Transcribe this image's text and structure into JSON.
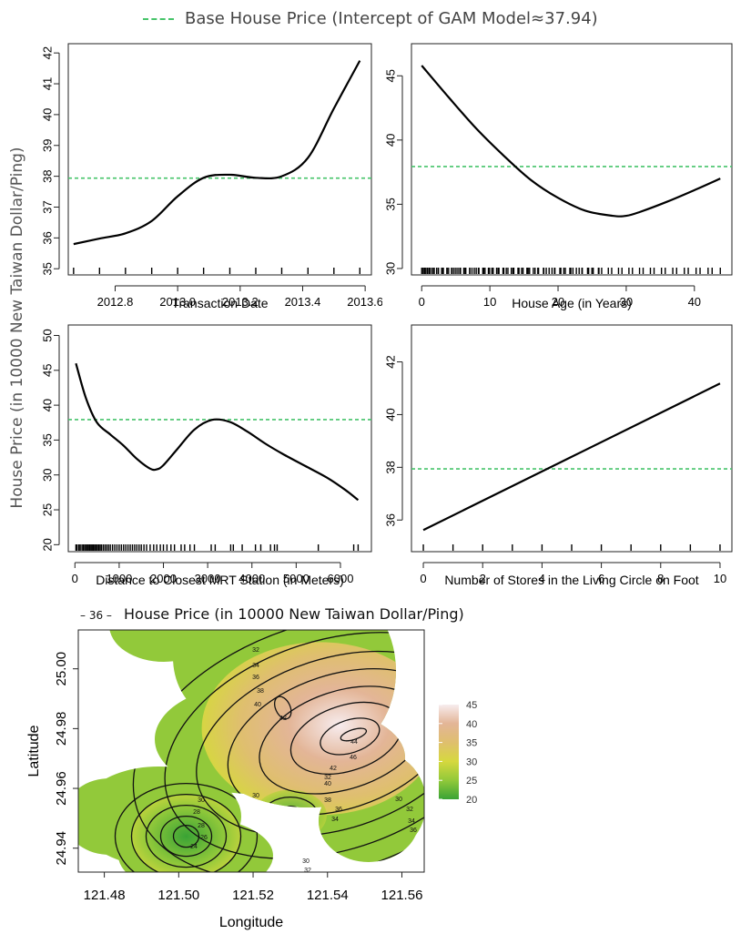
{
  "legend": {
    "base_line_label": "Base House Price (Intercept of GAM Model≈37.94)",
    "base_line_color": "#46c46a",
    "contour_symbol": "– 36 –",
    "contour_label": "House Price (in 10000 New Taiwan Dollar/Ping)"
  },
  "shared_ylabel": "House Price (in 10000 New Taiwan Dollar/Ping)",
  "chart_data": [
    {
      "type": "line",
      "xlabel": "Transaction Date",
      "xlim": [
        2012.65,
        2013.62
      ],
      "ylim": [
        34.8,
        42.3
      ],
      "xticks": [
        2012.8,
        2013.0,
        2013.2,
        2013.4,
        2013.6
      ],
      "xtick_labels": [
        "2012.8",
        "2013.0",
        "2013.2",
        "2013.4",
        "2013.6"
      ],
      "yticks": [
        35,
        36,
        37,
        38,
        39,
        40,
        41,
        42
      ],
      "ytick_labels": [
        "35",
        "36",
        "37",
        "38",
        "39",
        "40",
        "41",
        "42"
      ],
      "baseline": 37.94,
      "x": [
        2012.667,
        2012.75,
        2012.833,
        2012.917,
        2013.0,
        2013.083,
        2013.167,
        2013.25,
        2013.333,
        2013.417,
        2013.5,
        2013.583
      ],
      "y": [
        35.8,
        35.98,
        36.15,
        36.55,
        37.35,
        37.95,
        38.05,
        37.95,
        38.0,
        38.6,
        40.2,
        41.75
      ],
      "rug": [
        2012.667,
        2012.75,
        2012.833,
        2012.917,
        2013.0,
        2013.083,
        2013.167,
        2013.25,
        2013.333,
        2013.417,
        2013.5,
        2013.583
      ]
    },
    {
      "type": "line",
      "xlabel": "House Age (in Years)",
      "xlim": [
        -1.5,
        45.5
      ],
      "ylim": [
        29.5,
        47.5
      ],
      "xticks": [
        0,
        10,
        20,
        30,
        40
      ],
      "xtick_labels": [
        "0",
        "10",
        "20",
        "30",
        "40"
      ],
      "yticks": [
        30,
        35,
        40,
        45
      ],
      "ytick_labels": [
        "30",
        "35",
        "40",
        "45"
      ],
      "baseline": 37.94,
      "x": [
        0,
        4,
        8,
        12,
        16,
        20,
        24,
        28,
        30,
        32,
        36,
        40,
        43.8
      ],
      "y": [
        45.8,
        43.3,
        40.9,
        38.8,
        36.9,
        35.5,
        34.5,
        34.1,
        34.1,
        34.4,
        35.2,
        36.1,
        37.0
      ],
      "rug_range": [
        0,
        43.8
      ]
    },
    {
      "type": "line",
      "xlabel": "Distance to Closest MRT Station (in Meters)",
      "xlim": [
        -150,
        6700
      ],
      "ylim": [
        19,
        51.5
      ],
      "xticks": [
        0,
        1000,
        2000,
        3000,
        4000,
        5000,
        6000
      ],
      "xtick_labels": [
        "0",
        "1000",
        "2000",
        "3000",
        "4000",
        "5000",
        "6000"
      ],
      "yticks": [
        20,
        25,
        30,
        35,
        40,
        45,
        50
      ],
      "ytick_labels": [
        "20",
        "25",
        "30",
        "35",
        "40",
        "45",
        "50"
      ],
      "baseline": 37.94,
      "x": [
        23,
        250,
        500,
        800,
        1100,
        1400,
        1700,
        1850,
        2000,
        2300,
        2700,
        3100,
        3500,
        3900,
        4300,
        4700,
        5200,
        5700,
        6100,
        6400
      ],
      "y": [
        46.0,
        41.0,
        37.5,
        35.8,
        34.2,
        32.3,
        30.9,
        30.8,
        31.4,
        33.6,
        36.5,
        37.9,
        37.6,
        36.2,
        34.5,
        33.0,
        31.3,
        29.6,
        27.9,
        26.4
      ],
      "rug": [
        23,
        50,
        90,
        120,
        160,
        190,
        220,
        250,
        280,
        300,
        330,
        360,
        390,
        420,
        450,
        480,
        510,
        540,
        570,
        600,
        640,
        680,
        720,
        760,
        800,
        850,
        900,
        950,
        1000,
        1050,
        1100,
        1150,
        1200,
        1250,
        1300,
        1350,
        1400,
        1450,
        1500,
        1560,
        1620,
        1700,
        1780,
        1850,
        1930,
        2000,
        2080,
        2170,
        2250,
        2400,
        2480,
        2600,
        2700,
        3080,
        3170,
        3520,
        3580,
        3780,
        4080,
        4200,
        4420,
        4510,
        4570,
        5500,
        6300,
        6400
      ]
    },
    {
      "type": "line",
      "xlabel": "Number of Stores in the Living Circle on Foot",
      "xlim": [
        -0.4,
        10.4
      ],
      "ylim": [
        34.8,
        43.4
      ],
      "xticks": [
        0,
        2,
        4,
        6,
        8,
        10
      ],
      "xtick_labels": [
        "0",
        "2",
        "4",
        "6",
        "8",
        "10"
      ],
      "yticks": [
        36,
        38,
        40,
        42
      ],
      "ytick_labels": [
        "36",
        "38",
        "40",
        "42"
      ],
      "baseline": 37.94,
      "x": [
        0,
        10
      ],
      "y": [
        35.62,
        41.18
      ],
      "rug": [
        0,
        1,
        2,
        3,
        4,
        5,
        6,
        7,
        8,
        9,
        10
      ]
    },
    {
      "type": "heatmap",
      "xlabel": "Longitude",
      "ylabel": "Latitude",
      "xlim": [
        121.473,
        121.566
      ],
      "ylim": [
        24.932,
        25.013
      ],
      "xticks": [
        121.48,
        121.5,
        121.52,
        121.54,
        121.56
      ],
      "xtick_labels": [
        "121.48",
        "121.50",
        "121.52",
        "121.54",
        "121.56"
      ],
      "yticks": [
        24.94,
        24.96,
        24.98,
        25.0
      ],
      "ytick_labels": [
        "24.94",
        "24.96",
        "24.98",
        "25.00"
      ],
      "colorbar": {
        "ticks": [
          20,
          25,
          30,
          35,
          40,
          45
        ],
        "tick_labels": [
          "20",
          "25",
          "30",
          "35",
          "40",
          "45"
        ],
        "colors": [
          "#3aa335",
          "#92c93a",
          "#d6d83e",
          "#dfbf6e",
          "#e3b597",
          "#f7ecee"
        ]
      },
      "contour_labels": [
        "32",
        "34",
        "36",
        "38",
        "40",
        "42",
        "44",
        "46",
        "42",
        "40",
        "38",
        "36",
        "34",
        "32",
        "30",
        "30",
        "28",
        "28",
        "26",
        "24",
        "30",
        "32",
        "34",
        "36",
        "30",
        "32",
        "34",
        "36"
      ],
      "peaks": [
        {
          "lon": 121.547,
          "lat": 24.978,
          "value": 46
        },
        {
          "lon": 121.528,
          "lat": 24.987,
          "value": 42
        },
        {
          "lon": 121.502,
          "lat": 24.944,
          "value": 24
        },
        {
          "lon": 121.53,
          "lat": 24.951,
          "value": 28
        }
      ]
    }
  ]
}
